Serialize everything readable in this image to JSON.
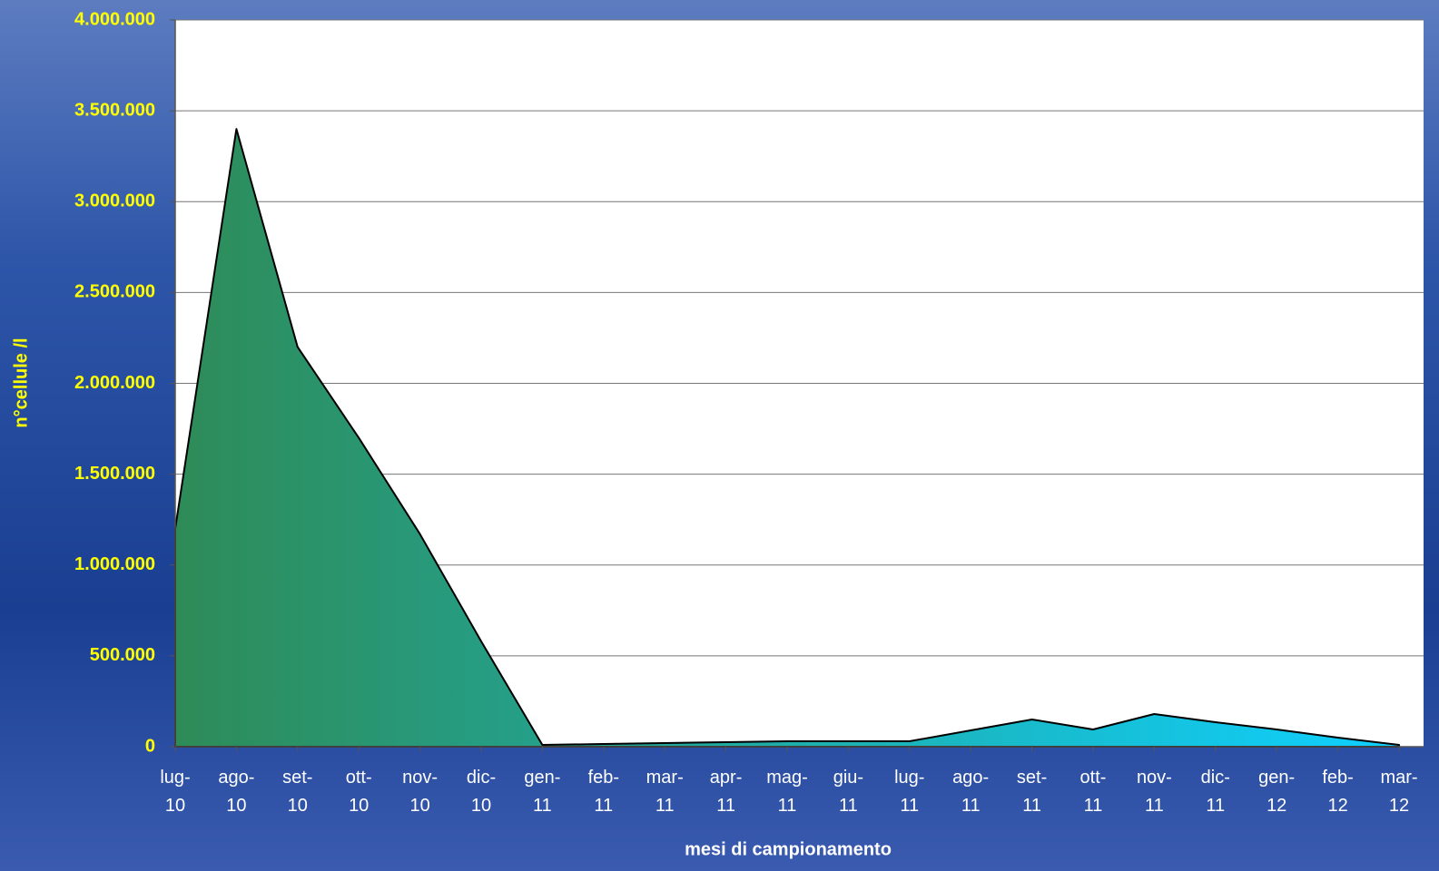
{
  "chart_data": {
    "type": "area",
    "y_label": "n°cellule /l",
    "x_label": "mesi di campionamento",
    "categories": [
      "lug-10",
      "ago-10",
      "set-10",
      "ott-10",
      "nov-10",
      "dic-10",
      "gen-11",
      "feb-11",
      "mar-11",
      "apr-11",
      "mag-11",
      "giu-11",
      "lug-11",
      "ago-11",
      "set-11",
      "ott-11",
      "nov-11",
      "dic-11",
      "gen-12",
      "feb-12",
      "mar-12"
    ],
    "values": [
      1200000,
      3400000,
      2200000,
      1700000,
      1170000,
      580000,
      10000,
      15000,
      20000,
      25000,
      30000,
      30000,
      30000,
      90000,
      150000,
      95000,
      180000,
      135000,
      95000,
      50000,
      10000
    ],
    "colors": [
      "#2e8b57",
      "#0fd0ff"
    ],
    "ylim": [
      0,
      4000000
    ],
    "yticks": [
      0,
      {
        "value": 500000,
        "label": "500.000"
      },
      {
        "value": 1000000,
        "label": "1.000.000"
      },
      {
        "value": 1500000,
        "label": "1.500.000"
      },
      {
        "value": 2000000,
        "label": "2.000.000"
      },
      {
        "value": 2500000,
        "label": "2.500.000"
      },
      {
        "value": 3000000,
        "label": "3.000.000"
      },
      {
        "value": 3500000,
        "label": "3.500.000"
      },
      {
        "value": 4000000,
        "label": "4.000.000"
      }
    ],
    "grid": true
  }
}
